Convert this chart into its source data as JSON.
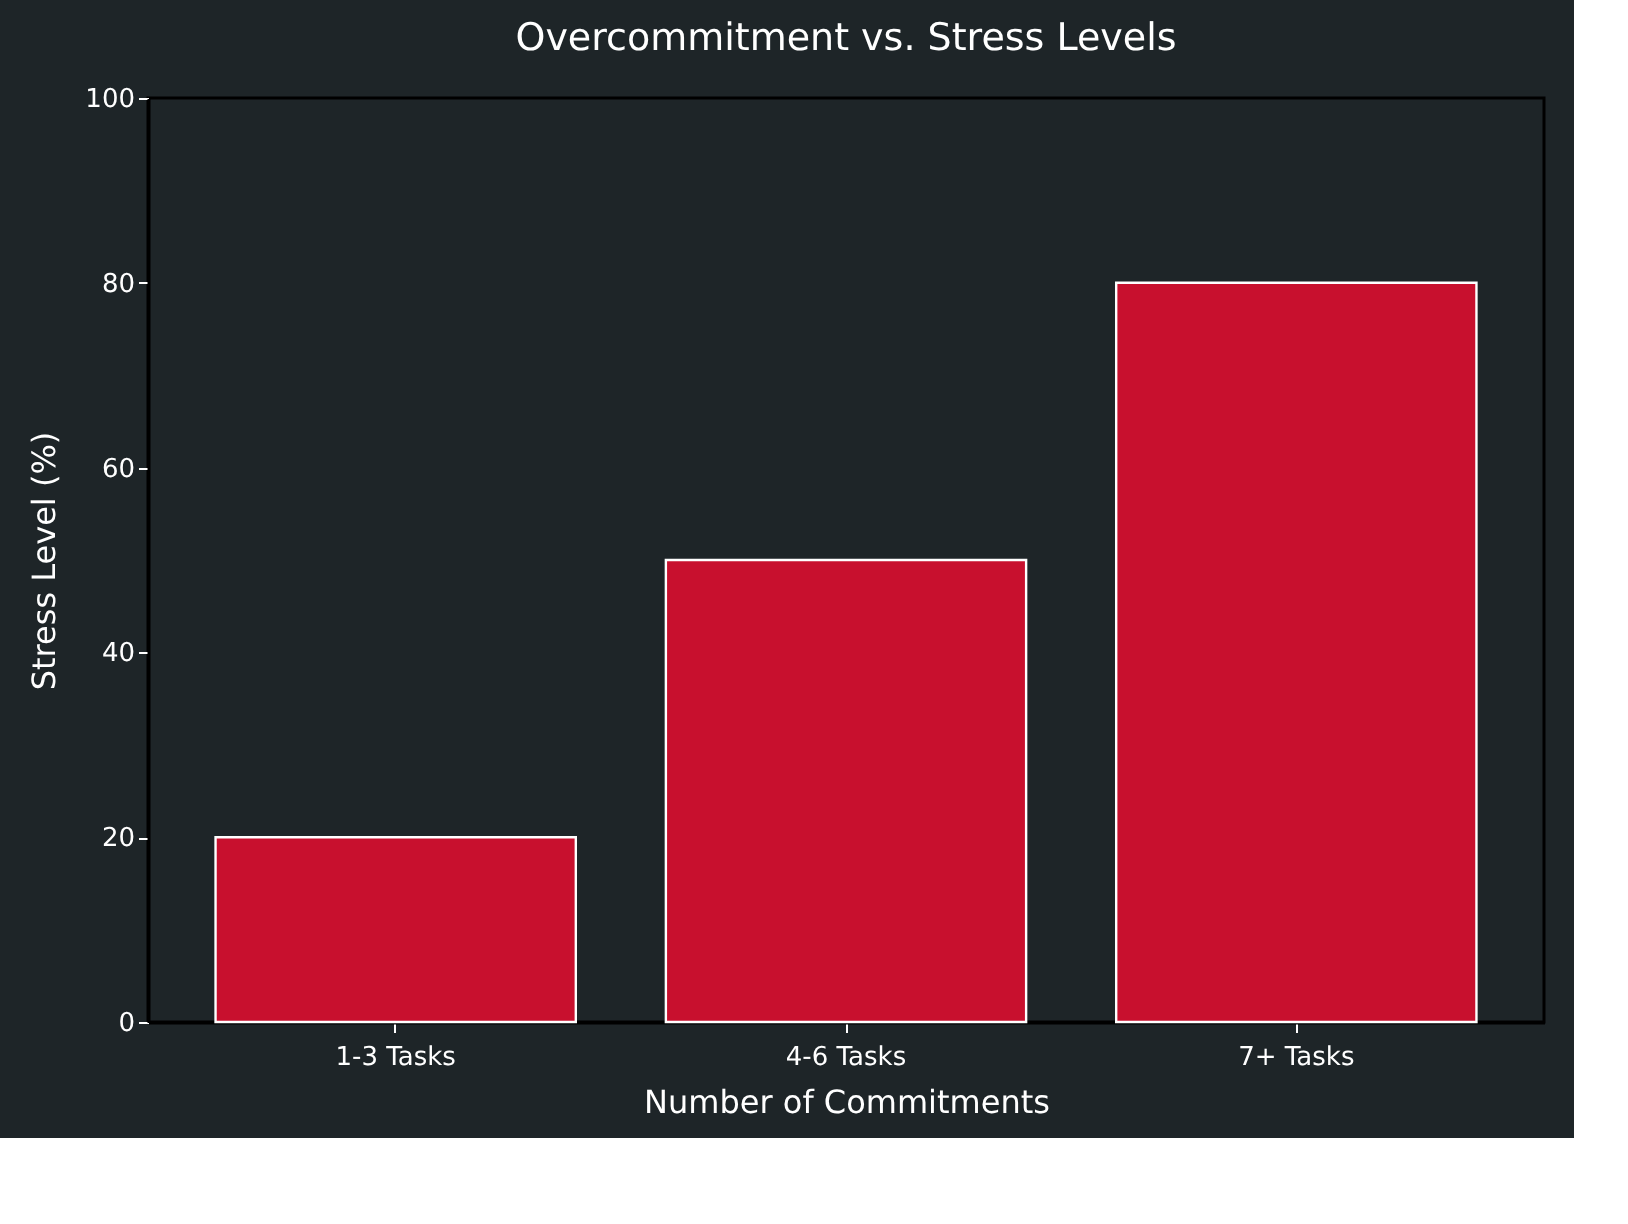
{
  "chart_data": {
    "type": "bar",
    "title": "Overcommitment vs. Stress Levels",
    "xlabel": "Number of Commitments",
    "ylabel": "Stress Level (%)",
    "categories": [
      "1-3 Tasks",
      "4-6 Tasks",
      "7+ Tasks"
    ],
    "series": [
      {
        "color": "#c8102e",
        "values": [
          20,
          50,
          80
        ]
      }
    ],
    "ylim": [
      0,
      100
    ],
    "yticks": [
      0,
      20,
      40,
      60,
      80,
      100
    ],
    "grid": false,
    "legend": false
  }
}
